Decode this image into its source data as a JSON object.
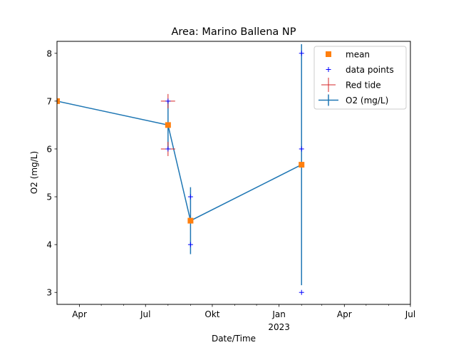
{
  "chart_data": {
    "type": "line",
    "title": "Area: Marino Ballena NP",
    "xlabel": "Date/Time",
    "ylabel": "O2 (mg/L)",
    "x_type": "date",
    "xlim": [
      "2022-03-01",
      "2023-07-01"
    ],
    "ylim": [
      2.75,
      8.25
    ],
    "x_ticks": [
      {
        "date": "2022-04-01",
        "label": "Apr",
        "sublabel": ""
      },
      {
        "date": "2022-07-01",
        "label": "Jul",
        "sublabel": ""
      },
      {
        "date": "2022-10-01",
        "label": "Okt",
        "sublabel": ""
      },
      {
        "date": "2023-01-01",
        "label": "Jan",
        "sublabel": "2023"
      },
      {
        "date": "2023-04-01",
        "label": "Apr",
        "sublabel": ""
      },
      {
        "date": "2023-07-01",
        "label": "Jul",
        "sublabel": ""
      }
    ],
    "x_minor_ticks": [
      "2022-05-01",
      "2022-06-01",
      "2022-08-01",
      "2022-09-01",
      "2022-11-01",
      "2022-12-01",
      "2023-02-01",
      "2023-03-01",
      "2023-05-01",
      "2023-06-01"
    ],
    "y_ticks": [
      3,
      4,
      5,
      6,
      7,
      8
    ],
    "grid": false,
    "legend_position": "top-right",
    "series": [
      {
        "name": "O2 (mg/L)",
        "kind": "errorbar-line",
        "color": "#1f77b4",
        "points": [
          {
            "x": "2022-03-01",
            "y": 7.0,
            "err": 0.0
          },
          {
            "x": "2022-08-01",
            "y": 6.5,
            "err": 0.5
          },
          {
            "x": "2022-09-01",
            "y": 4.5,
            "err": 0.7
          },
          {
            "x": "2023-02-01",
            "y": 5.67,
            "err": 2.52
          }
        ]
      },
      {
        "name": "mean",
        "kind": "marker-square",
        "color": "#ff7f0e",
        "points": [
          {
            "x": "2022-03-01",
            "y": 7.0
          },
          {
            "x": "2022-08-01",
            "y": 6.5
          },
          {
            "x": "2022-09-01",
            "y": 4.5
          },
          {
            "x": "2023-02-01",
            "y": 5.67
          }
        ]
      },
      {
        "name": "data points",
        "kind": "marker-plus",
        "color": "#0000ff",
        "points": [
          {
            "x": "2022-08-01",
            "y": 7.0
          },
          {
            "x": "2022-08-01",
            "y": 6.0
          },
          {
            "x": "2022-09-01",
            "y": 5.0
          },
          {
            "x": "2022-09-01",
            "y": 4.0
          },
          {
            "x": "2023-02-01",
            "y": 8.0
          },
          {
            "x": "2023-02-01",
            "y": 6.0
          },
          {
            "x": "2023-02-01",
            "y": 3.0
          }
        ]
      },
      {
        "name": "Red tide",
        "kind": "marker-plus-large",
        "color": "#d62728",
        "points": [
          {
            "x": "2022-08-01",
            "y": 7.0
          },
          {
            "x": "2022-08-01",
            "y": 6.0
          }
        ]
      }
    ]
  }
}
